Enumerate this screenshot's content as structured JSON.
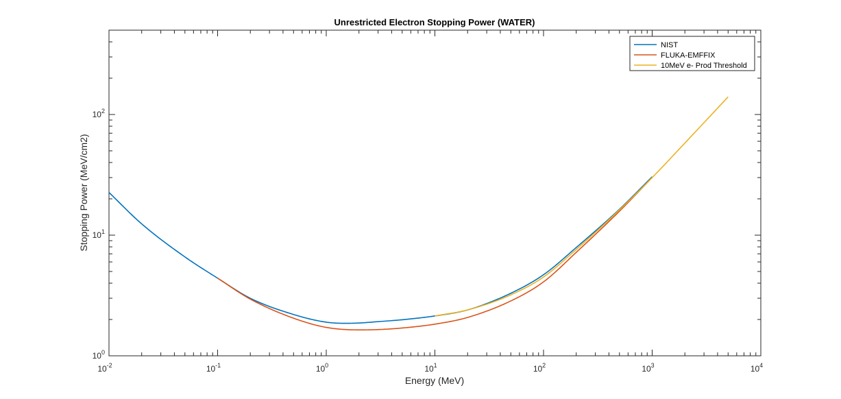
{
  "chart_data": {
    "type": "line",
    "title": "Unrestricted Electron Stopping Power (WATER)",
    "xlabel": "Energy (MeV)",
    "ylabel": "Stopping Power (MeV/cm2)",
    "xscale": "log",
    "yscale": "log",
    "xlim": [
      0.01,
      10000
    ],
    "ylim": [
      1,
      500
    ],
    "x_ticks": [
      {
        "base": "10",
        "exp": "-2",
        "value": 0.01
      },
      {
        "base": "10",
        "exp": "-1",
        "value": 0.1
      },
      {
        "base": "10",
        "exp": "0",
        "value": 1
      },
      {
        "base": "10",
        "exp": "1",
        "value": 10
      },
      {
        "base": "10",
        "exp": "2",
        "value": 100
      },
      {
        "base": "10",
        "exp": "3",
        "value": 1000
      },
      {
        "base": "10",
        "exp": "4",
        "value": 10000
      }
    ],
    "y_ticks": [
      {
        "base": "10",
        "exp": "0",
        "value": 1
      },
      {
        "base": "10",
        "exp": "1",
        "value": 10
      },
      {
        "base": "10",
        "exp": "2",
        "value": 100
      }
    ],
    "grid": false,
    "legend_position": "top-right",
    "series": [
      {
        "name": "NIST",
        "color": "#0072BD",
        "x": [
          0.01,
          0.02,
          0.05,
          0.1,
          0.2,
          0.5,
          1,
          1.5,
          2,
          3,
          5,
          10,
          20,
          50,
          100,
          200,
          500,
          1000
        ],
        "y": [
          22.6,
          12.4,
          6.6,
          4.4,
          3.0,
          2.2,
          1.9,
          1.86,
          1.87,
          1.92,
          1.99,
          2.14,
          2.4,
          3.3,
          4.7,
          7.9,
          16.4,
          30.5
        ]
      },
      {
        "name": "FLUKA-EMFFIX",
        "color": "#D95319",
        "x": [
          0.1,
          0.2,
          0.5,
          1,
          2,
          3,
          5,
          10,
          20,
          50,
          100,
          200,
          500,
          1000
        ],
        "y": [
          4.4,
          2.95,
          2.05,
          1.72,
          1.64,
          1.65,
          1.7,
          1.83,
          2.08,
          2.85,
          4.1,
          7.2,
          15.8,
          30
        ]
      },
      {
        "name": "10MeV e- Prod Threshold",
        "color": "#EDB120",
        "x": [
          10,
          20,
          50,
          100,
          200,
          500,
          1000,
          2000,
          5000
        ],
        "y": [
          2.14,
          2.4,
          3.2,
          4.5,
          7.6,
          16.2,
          30,
          58,
          140
        ]
      }
    ]
  }
}
